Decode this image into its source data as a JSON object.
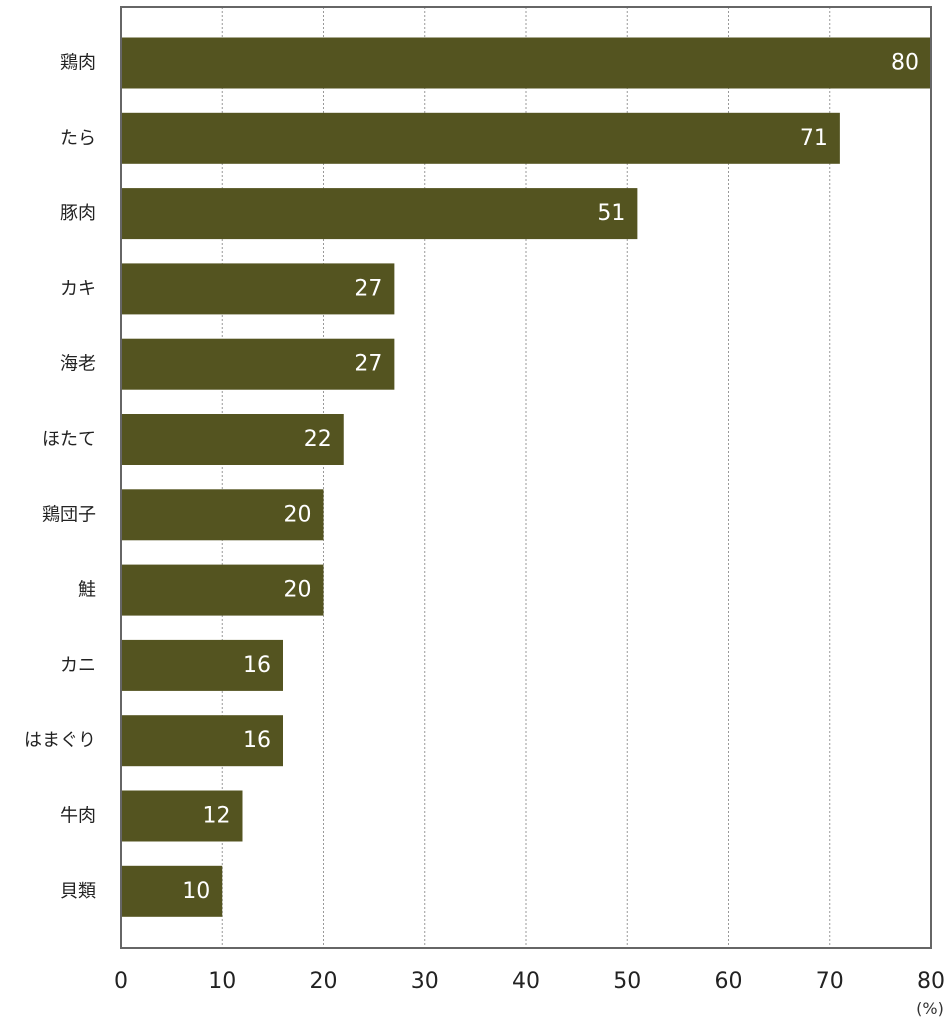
{
  "chart_data": {
    "type": "bar",
    "orientation": "horizontal",
    "categories": [
      "鶏肉",
      "たら",
      "豚肉",
      "カキ",
      "海老",
      "ほたて",
      "鶏団子",
      "鮭",
      "カニ",
      "はまぐり",
      "牛肉",
      "貝類"
    ],
    "values": [
      80,
      71,
      51,
      27,
      27,
      22,
      20,
      20,
      16,
      16,
      12,
      10
    ],
    "value_labels": [
      "80",
      "71",
      "51",
      "27",
      "27",
      "22",
      "20",
      "20",
      "16",
      "16",
      "12",
      "10"
    ],
    "title": "",
    "xlabel": "",
    "ylabel": "",
    "x_unit_label": "(%)",
    "xlim": [
      0,
      80
    ],
    "x_ticks": [
      0,
      10,
      20,
      30,
      40,
      50,
      60,
      70,
      80
    ],
    "x_tick_labels": [
      "0",
      "10",
      "20",
      "30",
      "40",
      "50",
      "60",
      "70",
      "80"
    ],
    "grid": "vertical dotted",
    "legend": "none",
    "colors": {
      "bar": "#545420",
      "bar_label": "#ffffff",
      "axis": "#666666",
      "grid": "#999999",
      "text": "#222222"
    }
  }
}
